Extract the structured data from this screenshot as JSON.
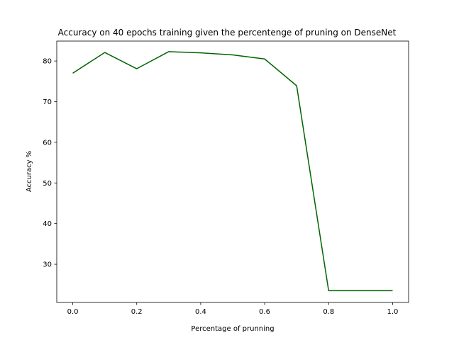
{
  "chart_data": {
    "type": "line",
    "title": "Accuracy on 40 epochs training given the percentenge of pruning on DenseNet",
    "xlabel": "Percentage of prunning",
    "ylabel": "Accuracy %",
    "xlim": [
      -0.05,
      1.05
    ],
    "ylim": [
      20.6,
      84.9
    ],
    "xticks": [
      0.0,
      0.2,
      0.4,
      0.6,
      0.8,
      1.0
    ],
    "xtick_labels": [
      "0.0",
      "0.2",
      "0.4",
      "0.6",
      "0.8",
      "1.0"
    ],
    "yticks": [
      30,
      40,
      50,
      60,
      70,
      80
    ],
    "ytick_labels": [
      "30",
      "40",
      "50",
      "60",
      "70",
      "80"
    ],
    "grid": false,
    "series": [
      {
        "color": "#006400",
        "x": [
          0.0,
          0.1,
          0.2,
          0.3,
          0.4,
          0.5,
          0.6,
          0.7,
          0.8,
          0.9,
          1.0
        ],
        "y": [
          77.0,
          82.1,
          78.1,
          82.3,
          82.0,
          81.5,
          80.5,
          73.9,
          23.5,
          23.5,
          23.5
        ]
      }
    ]
  }
}
